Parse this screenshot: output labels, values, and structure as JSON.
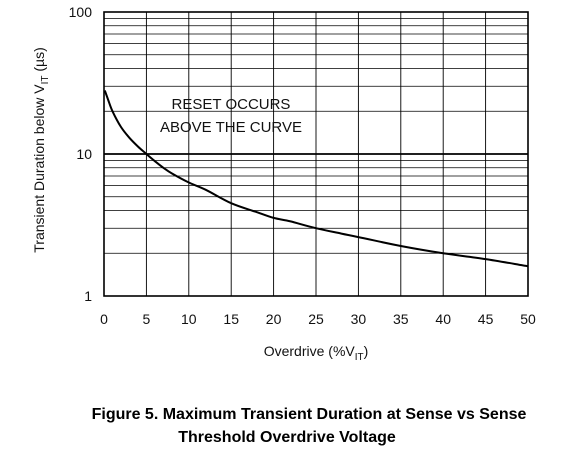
{
  "chart_data": {
    "type": "line",
    "xscale": "linear",
    "yscale": "log",
    "xlim": [
      0,
      50
    ],
    "ylim": [
      1,
      100
    ],
    "xticks": [
      0,
      5,
      10,
      15,
      20,
      25,
      30,
      35,
      40,
      45,
      50
    ],
    "yticks": [
      1,
      10,
      100
    ],
    "grid": true,
    "xlabel": {
      "text": "Overdrive (%V",
      "sub": "IT",
      "tail": ")"
    },
    "ylabel": {
      "text": "Transient Duration below V",
      "sub": "IT",
      "tail": " (µs)"
    },
    "annotation": [
      "RESET OCCURS",
      "ABOVE THE CURVE"
    ],
    "series": [
      {
        "color": "#000000",
        "x": [
          0.1,
          0.5,
          1,
          2,
          3,
          4,
          5,
          6,
          7,
          8,
          10,
          12,
          15,
          18,
          20,
          22,
          25,
          28,
          30,
          35,
          40,
          45,
          50
        ],
        "y": [
          28,
          24,
          20,
          15.5,
          13,
          11.3,
          10,
          8.9,
          8,
          7.3,
          6.3,
          5.6,
          4.5,
          3.9,
          3.55,
          3.35,
          3.0,
          2.75,
          2.6,
          2.25,
          2.0,
          1.82,
          1.62
        ]
      }
    ]
  },
  "caption": {
    "line1": "Figure 5.  Maximum Transient Duration at Sense vs Sense",
    "line2": "Threshold Overdrive Voltage"
  }
}
